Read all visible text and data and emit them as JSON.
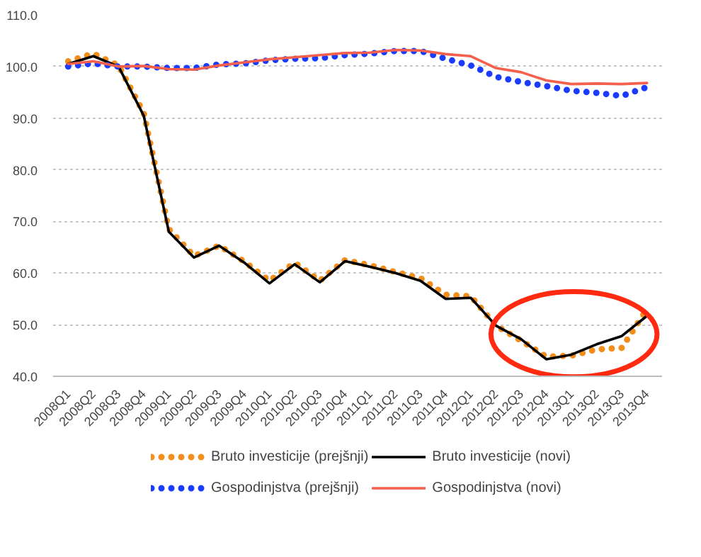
{
  "chart_data": {
    "type": "line",
    "categories": [
      "2008Q1",
      "2008Q2",
      "2008Q3",
      "2008Q4",
      "2009Q1",
      "2009Q2",
      "2009Q3",
      "2009Q4",
      "2010Q1",
      "2010Q2",
      "2010Q3",
      "2010Q4",
      "2011Q1",
      "2011Q2",
      "2011Q3",
      "2011Q4",
      "2012Q1",
      "2012Q2",
      "2012Q3",
      "2012Q4",
      "2013Q1",
      "2013Q2",
      "2013Q3",
      "2013Q4"
    ],
    "series": [
      {
        "name": "Bruto investicije (prejšnji)",
        "color": "#f28e1c",
        "line_style": "dotted",
        "values": [
          101,
          102.5,
          100.2,
          91,
          68.5,
          63.3,
          65.3,
          62.2,
          58.5,
          62,
          58.5,
          62.5,
          61.5,
          60.2,
          59,
          55.8,
          55.5,
          49.8,
          46.9,
          43.8,
          44.0,
          45.2,
          45.5,
          53.0
        ]
      },
      {
        "name": "Bruto investicije (novi)",
        "color": "#000000",
        "line_style": "solid",
        "values": [
          100.5,
          102,
          100,
          90.5,
          68,
          63,
          65.3,
          62,
          58,
          61.7,
          58.2,
          62.3,
          61.2,
          60,
          58.5,
          55,
          55.2,
          49.8,
          47.2,
          43.3,
          44.2,
          46.2,
          47.8,
          51.7
        ]
      },
      {
        "name": "Gospodinjstva (prejšnji)",
        "color": "#1a3cff",
        "line_style": "dotted",
        "values": [
          100,
          100.6,
          100,
          100,
          99.7,
          99.7,
          100.4,
          100.6,
          101.2,
          101.5,
          101.6,
          102.2,
          102.5,
          103,
          103,
          101.5,
          100.2,
          98,
          97,
          96.2,
          95.3,
          94.9,
          94.3,
          96
        ]
      },
      {
        "name": "Gospodinjstva (novi)",
        "color": "#f4604c",
        "line_style": "solid",
        "values": [
          100.5,
          101,
          100,
          100.1,
          99.5,
          99.4,
          100.2,
          100.8,
          101.4,
          101.8,
          102.2,
          102.6,
          102.7,
          103.2,
          103.1,
          102.4,
          102,
          99.7,
          98.9,
          97.3,
          96.6,
          96.7,
          96.6,
          96.8
        ]
      }
    ],
    "ylim": [
      40,
      110
    ],
    "yticks": [
      {
        "value": 40,
        "label": "40.0"
      },
      {
        "value": 50,
        "label": "50.0"
      },
      {
        "value": 60,
        "label": "60.0"
      },
      {
        "value": 70,
        "label": "70.0"
      },
      {
        "value": 80,
        "label": "80.0"
      },
      {
        "value": 90,
        "label": "90.0"
      },
      {
        "value": 100,
        "label": "100.0"
      },
      {
        "value": 110,
        "label": "110.0"
      }
    ],
    "grid": "y",
    "legend": "bottom"
  }
}
